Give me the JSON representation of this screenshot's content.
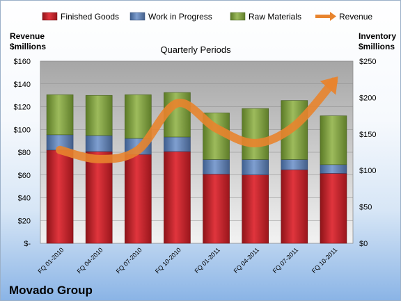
{
  "chart_data": {
    "type": "bar",
    "stacked": true,
    "title": "Quarterly Periods",
    "company": "Movado Group",
    "left_axis_title": [
      "Revenue",
      "$millions"
    ],
    "right_axis_title": [
      "Inventory",
      "$millions"
    ],
    "categories": [
      "FQ 01-2010",
      "FQ 04-2010",
      "FQ 07-2010",
      "FQ 10-2010",
      "FQ 01-2011",
      "FQ 04-2011",
      "FQ 07-2011",
      "FQ 10-2011"
    ],
    "left_ticks": [
      "$-",
      "$20",
      "$40",
      "$60",
      "$80",
      "$100",
      "$120",
      "$140",
      "$160"
    ],
    "right_ticks": [
      "$0",
      "$50",
      "$100",
      "$150",
      "$200",
      "$250"
    ],
    "ylim_left": [
      0,
      160
    ],
    "ylim_right": [
      0,
      250
    ],
    "series": [
      {
        "name": "Finished Goods",
        "axis": "right",
        "color": "#c0202a",
        "values": [
          128,
          126,
          122,
          126,
          95,
          94,
          101,
          96
        ]
      },
      {
        "name": "Work in Progress",
        "axis": "right",
        "color": "#5b7fb5",
        "values": [
          21,
          22,
          22,
          20,
          20,
          21,
          14,
          12
        ]
      },
      {
        "name": "Raw Materials",
        "axis": "right",
        "color": "#7d9c3e",
        "values": [
          55,
          55,
          60,
          61,
          64,
          70,
          81,
          67
        ]
      },
      {
        "name": "Revenue",
        "axis": "left",
        "type": "line",
        "color": "#e8842e",
        "values": [
          82,
          74,
          82,
          123,
          101,
          88,
          103,
          142
        ]
      }
    ],
    "grid": true,
    "legend_position": "top"
  }
}
